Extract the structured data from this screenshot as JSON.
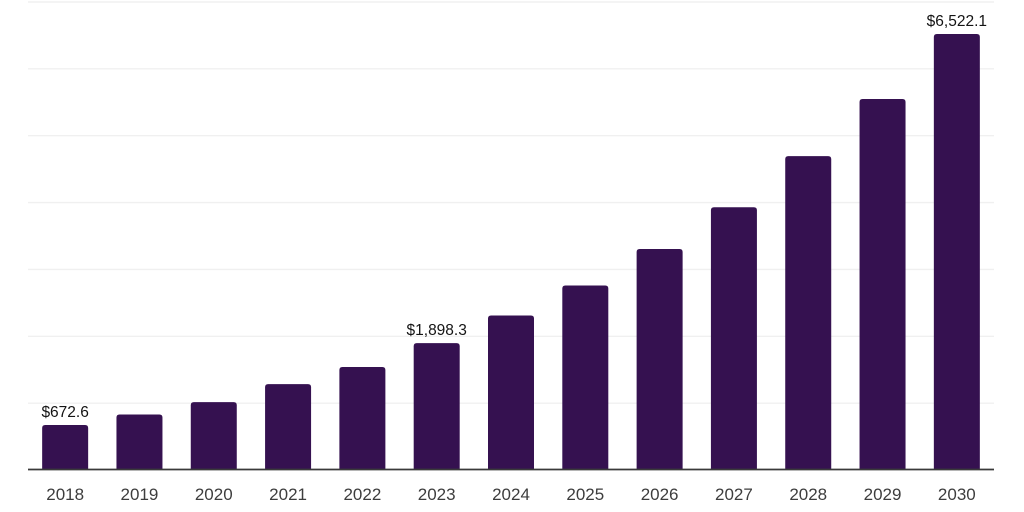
{
  "chart_data": {
    "type": "bar",
    "title": "",
    "xlabel": "",
    "ylabel": "",
    "categories": [
      "2018",
      "2019",
      "2020",
      "2021",
      "2022",
      "2023",
      "2024",
      "2025",
      "2026",
      "2027",
      "2028",
      "2029",
      "2030"
    ],
    "values": [
      672.6,
      830,
      1015,
      1285,
      1540,
      1898.3,
      2310,
      2760,
      3305,
      3930,
      4695,
      5550,
      6522.1
    ],
    "value_labels": [
      {
        "index": 0,
        "text": "$672.6"
      },
      {
        "index": 5,
        "text": "$1,898.3"
      },
      {
        "index": 12,
        "text": "$6,522.1"
      }
    ],
    "ylim": [
      0,
      7000
    ],
    "gridline_interval": 1000,
    "grid": true,
    "legend_position": "none",
    "y_tick_labels_visible": false,
    "colors": {
      "bar": "#351150",
      "gridline": "#f0f0f0",
      "axis_line": "#3a3a3a",
      "year_tick_text": "#3d3d3d",
      "value_label_text": "#141414",
      "background": "#ffffff"
    }
  }
}
